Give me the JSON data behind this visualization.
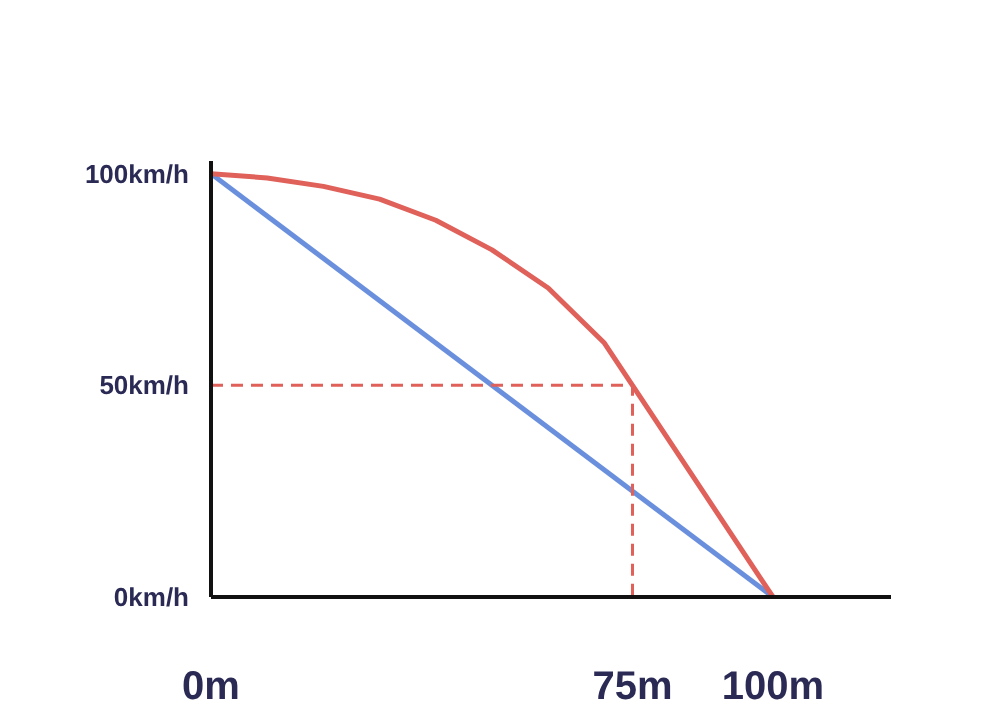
{
  "chart_data": {
    "type": "line",
    "xlim": [
      0,
      121
    ],
    "ylim": [
      0,
      103
    ],
    "xticks": [
      {
        "value": 0,
        "label": "0m"
      },
      {
        "value": 75,
        "label": "75m"
      },
      {
        "value": 100,
        "label": "100m"
      }
    ],
    "yticks": [
      {
        "value": 0,
        "label": "0km/h"
      },
      {
        "value": 50,
        "label": "50km/h"
      },
      {
        "value": 100,
        "label": "100km/h"
      }
    ],
    "grid": false,
    "marker": "none",
    "series": [
      {
        "color": "#6a8fdc",
        "x": [
          0,
          100
        ],
        "values": [
          100,
          0
        ],
        "line_style": "solid"
      },
      {
        "color": "#e0605a",
        "x": [
          0,
          10,
          20,
          30,
          40,
          50,
          60,
          70,
          75,
          87.5,
          100
        ],
        "values": [
          100,
          99,
          97,
          94,
          89,
          82,
          73,
          60,
          50,
          25,
          0
        ],
        "line_style": "solid"
      },
      {
        "color": "#e0605a",
        "x": [
          0,
          75,
          75
        ],
        "values": [
          50,
          50,
          0
        ],
        "line_style": "dashed"
      }
    ]
  }
}
